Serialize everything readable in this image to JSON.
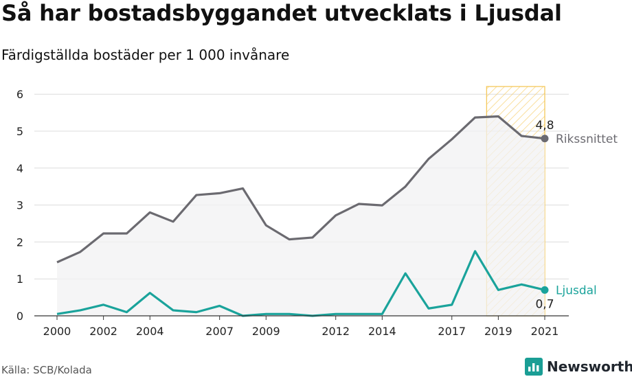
{
  "title": "Så har bostadsbyggandet utvecklats i Ljusdal",
  "subtitle": "Färdigställda bostäder per 1 000 invånare",
  "source": "Källa: SCB/Kolada",
  "brand": {
    "name": "Newsworthy",
    "icon": "newsworthy-logo-icon",
    "color": "#1a9e95"
  },
  "chart_data": {
    "type": "line",
    "x": [
      2000,
      2001,
      2002,
      2003,
      2004,
      2005,
      2006,
      2007,
      2008,
      2009,
      2010,
      2011,
      2012,
      2013,
      2014,
      2015,
      2016,
      2017,
      2018,
      2019,
      2020,
      2021
    ],
    "x_ticks": [
      "2000",
      "2002",
      "2004",
      "2007",
      "2009",
      "2012",
      "2014",
      "2017",
      "2019",
      "2021"
    ],
    "y_ticks": [
      "0",
      "1",
      "2",
      "3",
      "4",
      "5",
      "6"
    ],
    "ylim": [
      0,
      6.2
    ],
    "series": [
      {
        "name": "Rikssnittet",
        "color": "#6b6a70",
        "values": [
          1.45,
          1.73,
          2.23,
          2.23,
          2.8,
          2.55,
          3.27,
          3.32,
          3.45,
          2.45,
          2.07,
          2.12,
          2.72,
          3.03,
          2.99,
          3.5,
          4.25,
          4.78,
          5.37,
          5.4,
          4.87,
          4.8
        ],
        "end_label": "4,8",
        "shaded": true
      },
      {
        "name": "Ljusdal",
        "color": "#1aa39b",
        "values": [
          0.05,
          0.15,
          0.3,
          0.1,
          0.62,
          0.15,
          0.1,
          0.27,
          0.0,
          0.05,
          0.05,
          0.0,
          0.05,
          0.05,
          0.05,
          1.15,
          0.2,
          0.3,
          1.75,
          0.7,
          0.85,
          0.7
        ],
        "end_label": "0,7"
      }
    ],
    "highlight_x_range": [
      2019,
      2021
    ],
    "highlight_color": "#f5c85a",
    "grid": true
  }
}
